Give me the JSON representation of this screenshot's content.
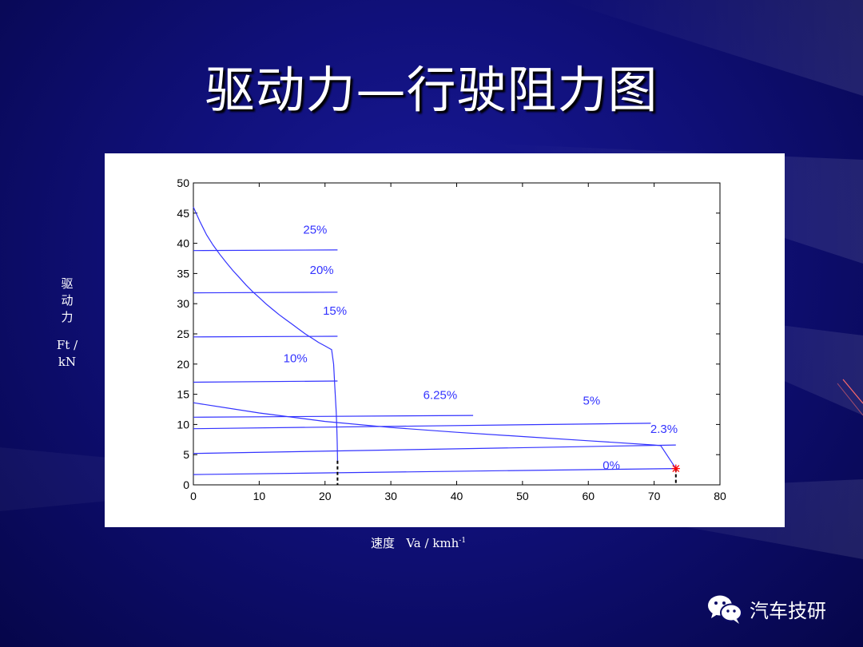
{
  "slide": {
    "title": "驱动力—行驶阻力图"
  },
  "axis_labels": {
    "y_chars": [
      "驱",
      "动",
      "力"
    ],
    "y_unit_line1": "Ft /",
    "y_unit_line2": "kN",
    "x_name": "速度",
    "x_symbol": "Va / kmh",
    "x_exp": "-1"
  },
  "brand": {
    "name": "汽车技研",
    "icon": "wechat-icon"
  },
  "colors": {
    "curve": "#3333ff",
    "marker": "#ff0000",
    "axis": "#000000"
  },
  "chart_data": {
    "type": "line",
    "xlim": [
      0,
      80
    ],
    "ylim": [
      0,
      50
    ],
    "x_ticks": [
      0,
      10,
      20,
      30,
      40,
      50,
      60,
      70,
      80
    ],
    "y_ticks": [
      0,
      5,
      10,
      15,
      20,
      25,
      30,
      35,
      40,
      45,
      50
    ],
    "grid": false,
    "driving_force": {
      "name": "",
      "x": [
        0,
        1,
        2,
        3,
        4,
        5,
        6,
        7,
        8,
        9,
        10,
        11,
        12,
        13,
        14,
        15,
        16,
        17,
        18,
        19,
        20,
        21,
        21.3,
        21.5,
        21.7,
        21.8,
        21.85,
        21.9
      ],
      "y": [
        46,
        43.6,
        41.4,
        39.7,
        38.2,
        36.8,
        35.5,
        34.3,
        33.1,
        32.0,
        31.0,
        30.0,
        29.1,
        28.2,
        27.4,
        26.6,
        25.8,
        25.0,
        24.3,
        23.6,
        23.0,
        22.4,
        20.0,
        16.0,
        12.0,
        9.0,
        7.0,
        4.0
      ]
    },
    "resistance_lines": [
      {
        "label": "25%",
        "x": [
          0,
          21.9
        ],
        "y": [
          38.8,
          38.9
        ],
        "label_x": 18.5,
        "label_y": 41.6
      },
      {
        "label": "20%",
        "x": [
          0,
          21.9
        ],
        "y": [
          31.8,
          31.9
        ],
        "label_x": 19.5,
        "label_y": 34.9
      },
      {
        "label": "15%",
        "x": [
          0,
          21.9
        ],
        "y": [
          24.5,
          24.6
        ],
        "label_x": 21.5,
        "label_y": 28.2
      },
      {
        "label": "10%",
        "x": [
          0,
          21.9
        ],
        "y": [
          17.0,
          17.2
        ],
        "label_x": 15.5,
        "label_y": 20.3
      },
      {
        "label": "6.25%",
        "x": [
          0,
          42.5
        ],
        "y": [
          11.2,
          11.5
        ],
        "label_x": 37.5,
        "label_y": 14.2
      },
      {
        "label": "5%",
        "x": [
          0,
          69.5
        ],
        "y": [
          9.3,
          10.2
        ],
        "label_x": 60.5,
        "label_y": 13.3
      },
      {
        "label": "2.3%",
        "x": [
          0,
          73.3
        ],
        "y": [
          5.2,
          6.6
        ],
        "label_x": 71.5,
        "label_y": 8.6
      },
      {
        "label": "0%",
        "x": [
          0,
          73.3
        ],
        "y": [
          1.7,
          2.7
        ],
        "label_x": 63.5,
        "label_y": 2.6
      }
    ],
    "high_gear_force": {
      "x": [
        0,
        10,
        20,
        30,
        40,
        50,
        60,
        70,
        71,
        73.3
      ],
      "y": [
        13.6,
        11.9,
        10.5,
        9.5,
        8.7,
        8.0,
        7.3,
        6.6,
        6.5,
        2.7
      ]
    },
    "intersections": [
      {
        "x": 21.9,
        "y": 0,
        "y_top": 4.0
      },
      {
        "x": 73.3,
        "y": 0,
        "y_top": 2.7
      }
    ],
    "max_speed_marker": {
      "x": 73.3,
      "y": 2.7
    }
  }
}
